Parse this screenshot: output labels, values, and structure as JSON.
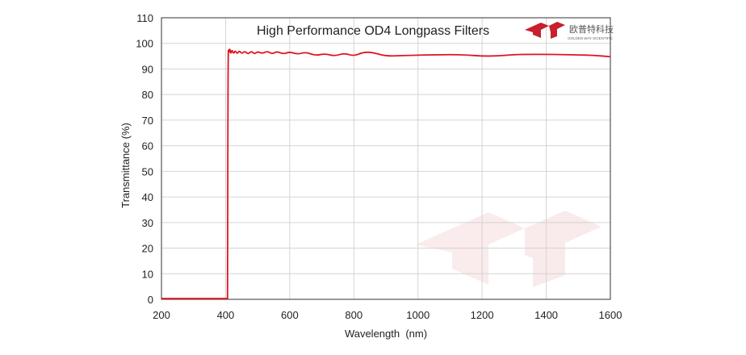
{
  "logo": {
    "cn_text": "欧普特科技",
    "en_text": "GOLDEN WAY SCIENTIFIC",
    "color": "#c7202e"
  },
  "chart_data": {
    "type": "line",
    "title": "High Performance OD4 Longpass  Filters",
    "xlabel": "Wavelength  (nm)",
    "ylabel": "Transmittance  (%)",
    "xlim": [
      200,
      1600
    ],
    "ylim": [
      0,
      110
    ],
    "xticks": [
      200,
      400,
      600,
      800,
      1000,
      1200,
      1400,
      1600
    ],
    "yticks": [
      0,
      10,
      20,
      30,
      40,
      50,
      60,
      70,
      80,
      90,
      100,
      110
    ],
    "grid": true,
    "line_color": "#e0141e",
    "series": [
      {
        "x": [
          200,
          380,
          400,
          406,
          407,
          408,
          410,
          413,
          416,
          420,
          425,
          430,
          436,
          443,
          450,
          460,
          470,
          480,
          490,
          500,
          515,
          530,
          545,
          560,
          580,
          600,
          625,
          650,
          680,
          710,
          740,
          770,
          800,
          830,
          860,
          900,
          950,
          1000,
          1050,
          1100,
          1150,
          1200,
          1250,
          1300,
          1350,
          1400,
          1450,
          1500,
          1550,
          1600
        ],
        "y": [
          0.3,
          0.3,
          0.3,
          0.3,
          60,
          98.5,
          96,
          98.3,
          95.7,
          97.6,
          95.8,
          97.3,
          95.8,
          97.2,
          95.9,
          97.0,
          95.7,
          97.0,
          95.8,
          96.8,
          96.0,
          97.0,
          95.8,
          96.9,
          95.8,
          96.7,
          95.7,
          96.6,
          95.2,
          96.0,
          95.0,
          96.2,
          95.0,
          96.6,
          96.4,
          95.0,
          95.2,
          95.4,
          95.5,
          95.6,
          95.5,
          95.0,
          95.1,
          95.6,
          95.7,
          95.7,
          95.6,
          95.5,
          95.3,
          94.8
        ]
      }
    ]
  }
}
